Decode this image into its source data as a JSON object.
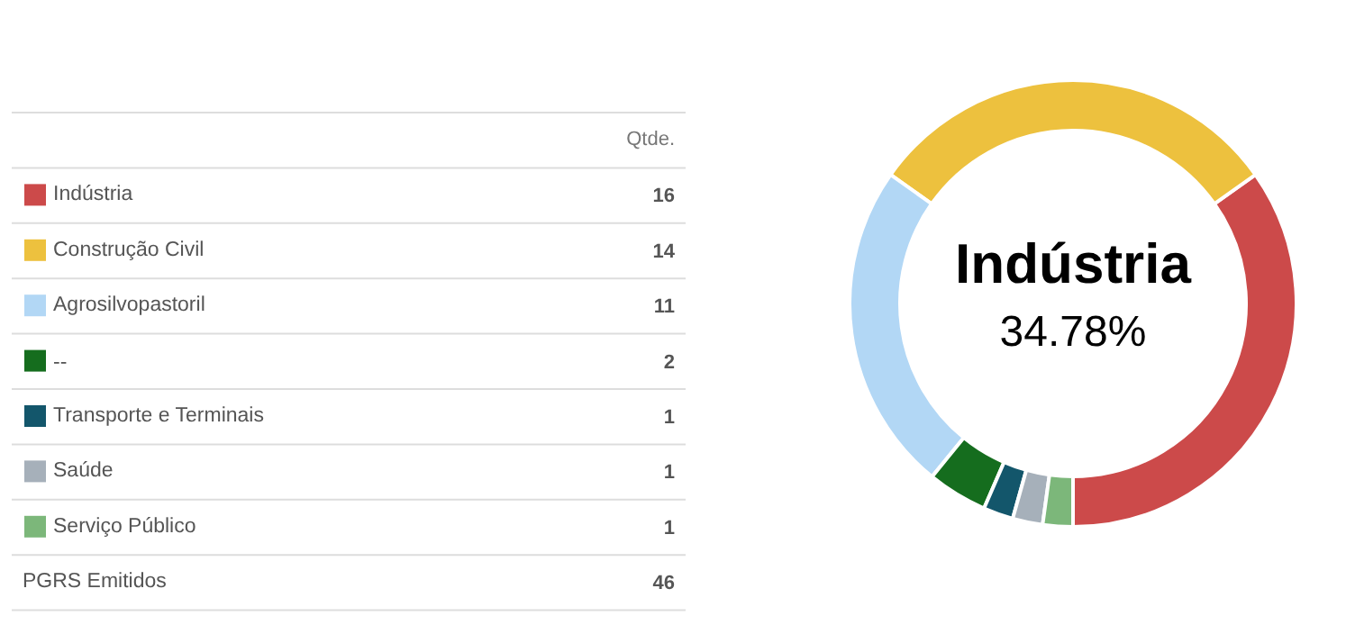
{
  "chart_data": {
    "type": "donut",
    "categories": [
      "Indústria",
      "Construção Civil",
      "Agrosilvopastoril",
      "--",
      "Transporte e Terminais",
      "Saúde",
      "Serviço Público"
    ],
    "values": [
      16,
      14,
      11,
      2,
      1,
      1,
      1
    ],
    "colors": [
      "#cc4a4a",
      "#edc13e",
      "#b2d7f5",
      "#156d1e",
      "#13566b",
      "#a6b0ba",
      "#7cb77a"
    ],
    "data_labels": true,
    "legend": "left",
    "annotations": [
      "Qtde.",
      "PGRS Emitidos",
      "46",
      "Indústria",
      "34.78%"
    ]
  }
}
